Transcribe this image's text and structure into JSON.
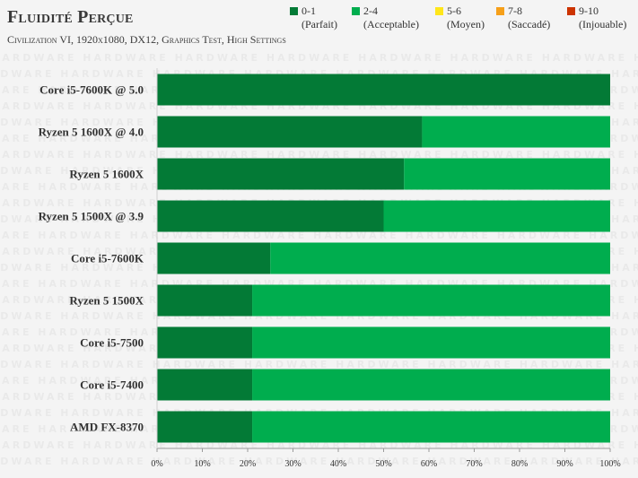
{
  "chart_data": {
    "type": "bar",
    "stacked": true,
    "orientation": "horizontal",
    "title": "Fluidité Perçue",
    "subtitle": "Civilization VI, 1920x1080, DX12, Graphics Test, High Settings",
    "categories": [
      "Core i5-7600K @ 5.0",
      "Ryzen 5 1600X @ 4.0",
      "Ryzen 5 1600X",
      "Ryzen 5 1500X @ 3.9",
      "Core i5-7600K",
      "Ryzen 5 1500X",
      "Core i5-7500",
      "Core i5-7400",
      "AMD FX-8370"
    ],
    "series": [
      {
        "name": "0-1",
        "subname": "(Parfait)",
        "color": "#037a36",
        "values": [
          100,
          58.5,
          54.5,
          50,
          25,
          21,
          21,
          21,
          21
        ]
      },
      {
        "name": "2-4",
        "subname": "(Acceptable)",
        "color": "#00ad4e",
        "values": [
          0,
          41.5,
          45.5,
          50,
          75,
          79,
          79,
          79,
          79
        ]
      },
      {
        "name": "5-6",
        "subname": "(Moyen)",
        "color": "#ffe61a",
        "values": [
          0,
          0,
          0,
          0,
          0,
          0,
          0,
          0,
          0
        ]
      },
      {
        "name": "7-8",
        "subname": "(Saccadé)",
        "color": "#f6a01a",
        "values": [
          0,
          0,
          0,
          0,
          0,
          0,
          0,
          0,
          0
        ]
      },
      {
        "name": "9-10",
        "subname": "(Injouable)",
        "color": "#cc3300",
        "values": [
          0,
          0,
          0,
          0,
          0,
          0,
          0,
          0,
          0
        ]
      }
    ],
    "xlim": [
      0,
      100
    ],
    "xticks": [
      "0%",
      "10%",
      "20%",
      "30%",
      "40%",
      "50%",
      "60%",
      "70%",
      "80%",
      "90%",
      "100%"
    ],
    "legend_placement": "top-right",
    "grid": false
  },
  "watermark_text": "HARDWARE"
}
